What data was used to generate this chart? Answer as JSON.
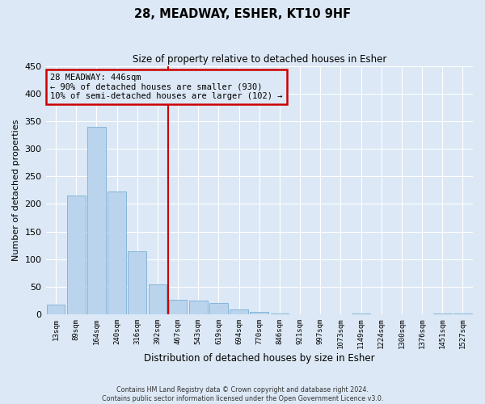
{
  "title": "28, MEADWAY, ESHER, KT10 9HF",
  "subtitle": "Size of property relative to detached houses in Esher",
  "xlabel": "Distribution of detached houses by size in Esher",
  "ylabel": "Number of detached properties",
  "bin_labels": [
    "13sqm",
    "89sqm",
    "164sqm",
    "240sqm",
    "316sqm",
    "392sqm",
    "467sqm",
    "543sqm",
    "619sqm",
    "694sqm",
    "770sqm",
    "846sqm",
    "921sqm",
    "997sqm",
    "1073sqm",
    "1149sqm",
    "1224sqm",
    "1300sqm",
    "1376sqm",
    "1451sqm",
    "1527sqm"
  ],
  "bar_values": [
    17,
    215,
    340,
    222,
    114,
    54,
    26,
    25,
    20,
    8,
    5,
    2,
    0,
    0,
    0,
    2,
    0,
    0,
    0,
    2,
    2
  ],
  "bar_color": "#bad4ee",
  "bar_edge_color": "#7aafd4",
  "vline_x_index": 6,
  "vline_color": "#cc0000",
  "annotation_title": "28 MEADWAY: 446sqm",
  "annotation_line1": "← 90% of detached houses are smaller (930)",
  "annotation_line2": "10% of semi-detached houses are larger (102) →",
  "annotation_box_color": "#cc0000",
  "ylim": [
    0,
    450
  ],
  "yticks": [
    0,
    50,
    100,
    150,
    200,
    250,
    300,
    350,
    400,
    450
  ],
  "footer1": "Contains HM Land Registry data © Crown copyright and database right 2024.",
  "footer2": "Contains public sector information licensed under the Open Government Licence v3.0.",
  "background_color": "#dce8f5",
  "plot_bg_color": "#dce8f5",
  "grid_color": "#ffffff"
}
